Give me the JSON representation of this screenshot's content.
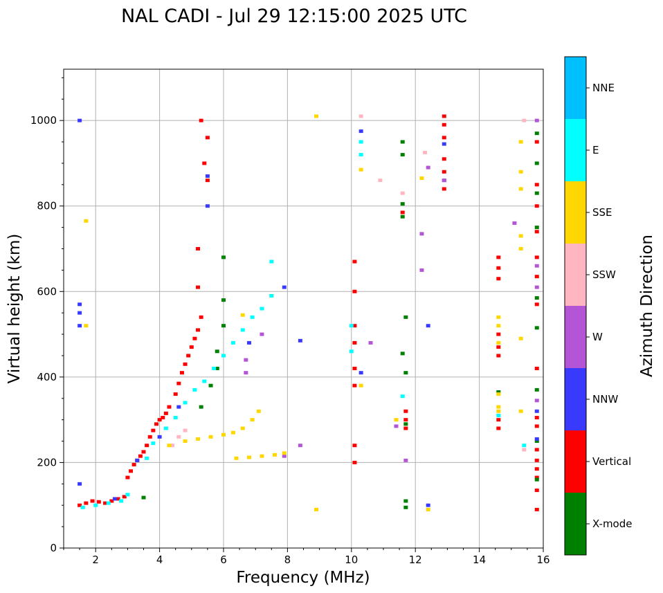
{
  "chart_data": {
    "type": "scatter",
    "title": "NAL CADI - Jul 29 12:15:00 2025 UTC",
    "xlabel": "Frequency (MHz)",
    "ylabel": "Virtual height (km)",
    "xlim": [
      1,
      16
    ],
    "ylim": [
      0,
      1120
    ],
    "xticks": [
      2,
      4,
      6,
      8,
      10,
      12,
      14,
      16
    ],
    "yticks": [
      0,
      200,
      400,
      600,
      800,
      1000
    ],
    "grid": true,
    "colorbar": {
      "label": "Azimuth Direction",
      "categories": [
        {
          "name": "X-mode",
          "color": "#008000"
        },
        {
          "name": "Vertical",
          "color": "#ff0000"
        },
        {
          "name": "NNW",
          "color": "#3a3aff"
        },
        {
          "name": "W",
          "color": "#b455d6"
        },
        {
          "name": "SSW",
          "color": "#ffb6c1"
        },
        {
          "name": "SSE",
          "color": "#ffd700"
        },
        {
          "name": "E",
          "color": "#00ffff"
        },
        {
          "name": "NNE",
          "color": "#00bfff"
        }
      ]
    },
    "traces": [
      {
        "azimuth": "Vertical",
        "points": [
          [
            1.5,
            100
          ],
          [
            1.7,
            105
          ],
          [
            1.9,
            110
          ],
          [
            2.1,
            108
          ],
          [
            2.3,
            105
          ],
          [
            2.5,
            110
          ],
          [
            2.7,
            115
          ],
          [
            2.9,
            120
          ],
          [
            3.0,
            165
          ],
          [
            3.1,
            180
          ],
          [
            3.2,
            195
          ],
          [
            3.3,
            205
          ],
          [
            3.4,
            215
          ],
          [
            3.5,
            225
          ],
          [
            3.6,
            240
          ],
          [
            3.7,
            260
          ],
          [
            3.8,
            275
          ],
          [
            3.9,
            290
          ],
          [
            4.0,
            300
          ],
          [
            4.1,
            305
          ],
          [
            4.2,
            315
          ],
          [
            4.3,
            330
          ],
          [
            4.5,
            360
          ],
          [
            4.6,
            385
          ],
          [
            4.7,
            410
          ],
          [
            4.8,
            430
          ],
          [
            4.9,
            450
          ],
          [
            5.0,
            470
          ],
          [
            5.1,
            490
          ],
          [
            5.2,
            510
          ],
          [
            5.3,
            540
          ],
          [
            5.2,
            610
          ],
          [
            5.2,
            700
          ],
          [
            5.5,
            860
          ],
          [
            5.4,
            900
          ],
          [
            5.5,
            960
          ],
          [
            5.3,
            1000
          ],
          [
            10.1,
            200
          ],
          [
            10.1,
            240
          ],
          [
            10.1,
            380
          ],
          [
            10.1,
            420
          ],
          [
            10.1,
            480
          ],
          [
            10.1,
            520
          ],
          [
            10.1,
            600
          ],
          [
            10.1,
            670
          ],
          [
            11.7,
            280
          ],
          [
            11.7,
            300
          ],
          [
            11.7,
            320
          ],
          [
            11.6,
            785
          ],
          [
            12.9,
            840
          ],
          [
            12.9,
            880
          ],
          [
            12.9,
            910
          ],
          [
            12.9,
            960
          ],
          [
            12.9,
            990
          ],
          [
            12.9,
            1010
          ],
          [
            14.6,
            280
          ],
          [
            14.6,
            300
          ],
          [
            14.6,
            450
          ],
          [
            14.6,
            470
          ],
          [
            14.6,
            500
          ],
          [
            14.6,
            630
          ],
          [
            14.6,
            655
          ],
          [
            14.6,
            680
          ],
          [
            15.8,
            90
          ],
          [
            15.8,
            135
          ],
          [
            15.8,
            165
          ],
          [
            15.8,
            185
          ],
          [
            15.8,
            205
          ],
          [
            15.8,
            230
          ],
          [
            15.8,
            285
          ],
          [
            15.8,
            305
          ],
          [
            15.8,
            420
          ],
          [
            15.8,
            570
          ],
          [
            15.8,
            635
          ],
          [
            15.8,
            680
          ],
          [
            15.8,
            740
          ],
          [
            15.8,
            800
          ],
          [
            15.8,
            850
          ],
          [
            15.8,
            950
          ]
        ]
      },
      {
        "azimuth": "X-mode",
        "points": [
          [
            3.5,
            118
          ],
          [
            5.3,
            330
          ],
          [
            5.6,
            380
          ],
          [
            5.8,
            420
          ],
          [
            5.8,
            460
          ],
          [
            6.0,
            520
          ],
          [
            6.0,
            580
          ],
          [
            6.0,
            680
          ],
          [
            11.7,
            95
          ],
          [
            11.7,
            110
          ],
          [
            11.7,
            290
          ],
          [
            11.7,
            410
          ],
          [
            11.7,
            540
          ],
          [
            11.6,
            455
          ],
          [
            11.6,
            775
          ],
          [
            11.6,
            805
          ],
          [
            11.6,
            920
          ],
          [
            11.6,
            950
          ],
          [
            14.6,
            365
          ],
          [
            15.8,
            160
          ],
          [
            15.8,
            250
          ],
          [
            15.8,
            370
          ],
          [
            15.8,
            515
          ],
          [
            15.8,
            585
          ],
          [
            15.8,
            750
          ],
          [
            15.8,
            830
          ],
          [
            15.8,
            900
          ],
          [
            15.8,
            970
          ]
        ]
      },
      {
        "azimuth": "NNW",
        "points": [
          [
            1.5,
            150
          ],
          [
            1.5,
            520
          ],
          [
            1.5,
            550
          ],
          [
            1.5,
            570
          ],
          [
            1.5,
            1000
          ],
          [
            2.6,
            115
          ],
          [
            3.3,
            205
          ],
          [
            4.0,
            260
          ],
          [
            4.6,
            330
          ],
          [
            5.5,
            800
          ],
          [
            5.5,
            870
          ],
          [
            6.8,
            480
          ],
          [
            7.9,
            610
          ],
          [
            8.4,
            485
          ],
          [
            10.3,
            410
          ],
          [
            10.3,
            975
          ],
          [
            12.4,
            100
          ],
          [
            12.4,
            520
          ],
          [
            12.9,
            860
          ],
          [
            12.9,
            945
          ],
          [
            15.8,
            255
          ],
          [
            15.8,
            320
          ]
        ]
      },
      {
        "azimuth": "W",
        "points": [
          [
            6.7,
            410
          ],
          [
            6.7,
            440
          ],
          [
            7.2,
            500
          ],
          [
            7.9,
            215
          ],
          [
            8.4,
            240
          ],
          [
            10.6,
            480
          ],
          [
            11.4,
            285
          ],
          [
            11.7,
            205
          ],
          [
            12.2,
            650
          ],
          [
            12.2,
            735
          ],
          [
            12.4,
            890
          ],
          [
            12.9,
            860
          ],
          [
            15.1,
            760
          ],
          [
            15.8,
            345
          ],
          [
            15.8,
            610
          ],
          [
            15.8,
            660
          ],
          [
            15.8,
            1000
          ]
        ]
      },
      {
        "azimuth": "SSW",
        "points": [
          [
            4.4,
            240
          ],
          [
            4.6,
            260
          ],
          [
            4.8,
            275
          ],
          [
            10.3,
            1010
          ],
          [
            10.9,
            860
          ],
          [
            11.6,
            830
          ],
          [
            12.3,
            925
          ],
          [
            15.4,
            230
          ],
          [
            15.4,
            1000
          ]
        ]
      },
      {
        "azimuth": "SSE",
        "points": [
          [
            1.7,
            520
          ],
          [
            1.7,
            765
          ],
          [
            4.3,
            240
          ],
          [
            4.8,
            250
          ],
          [
            5.2,
            255
          ],
          [
            5.6,
            260
          ],
          [
            6.0,
            265
          ],
          [
            6.3,
            270
          ],
          [
            6.6,
            280
          ],
          [
            6.9,
            300
          ],
          [
            7.1,
            320
          ],
          [
            6.4,
            210
          ],
          [
            6.8,
            212
          ],
          [
            7.2,
            215
          ],
          [
            7.6,
            218
          ],
          [
            7.9,
            222
          ],
          [
            6.6,
            545
          ],
          [
            7.5,
            590
          ],
          [
            8.9,
            90
          ],
          [
            8.9,
            1010
          ],
          [
            10.3,
            380
          ],
          [
            10.3,
            885
          ],
          [
            11.4,
            300
          ],
          [
            12.2,
            865
          ],
          [
            12.4,
            90
          ],
          [
            14.6,
            320
          ],
          [
            14.6,
            330
          ],
          [
            14.6,
            360
          ],
          [
            14.6,
            480
          ],
          [
            14.6,
            520
          ],
          [
            14.6,
            540
          ],
          [
            15.3,
            320
          ],
          [
            15.3,
            490
          ],
          [
            15.3,
            700
          ],
          [
            15.3,
            730
          ],
          [
            15.3,
            840
          ],
          [
            15.3,
            880
          ],
          [
            15.3,
            950
          ]
        ]
      },
      {
        "azimuth": "E",
        "points": [
          [
            1.6,
            95
          ],
          [
            2.0,
            100
          ],
          [
            2.4,
            105
          ],
          [
            2.8,
            110
          ],
          [
            3.0,
            125
          ],
          [
            3.6,
            210
          ],
          [
            3.8,
            245
          ],
          [
            4.2,
            280
          ],
          [
            4.5,
            305
          ],
          [
            4.8,
            340
          ],
          [
            5.1,
            370
          ],
          [
            5.4,
            390
          ],
          [
            5.7,
            420
          ],
          [
            6.0,
            450
          ],
          [
            6.3,
            480
          ],
          [
            6.6,
            510
          ],
          [
            6.9,
            540
          ],
          [
            7.2,
            560
          ],
          [
            7.5,
            590
          ],
          [
            7.5,
            670
          ],
          [
            10.3,
            920
          ],
          [
            10.3,
            950
          ],
          [
            10.0,
            460
          ],
          [
            10.0,
            520
          ],
          [
            11.6,
            355
          ],
          [
            14.6,
            310
          ],
          [
            15.4,
            240
          ]
        ]
      }
    ]
  }
}
